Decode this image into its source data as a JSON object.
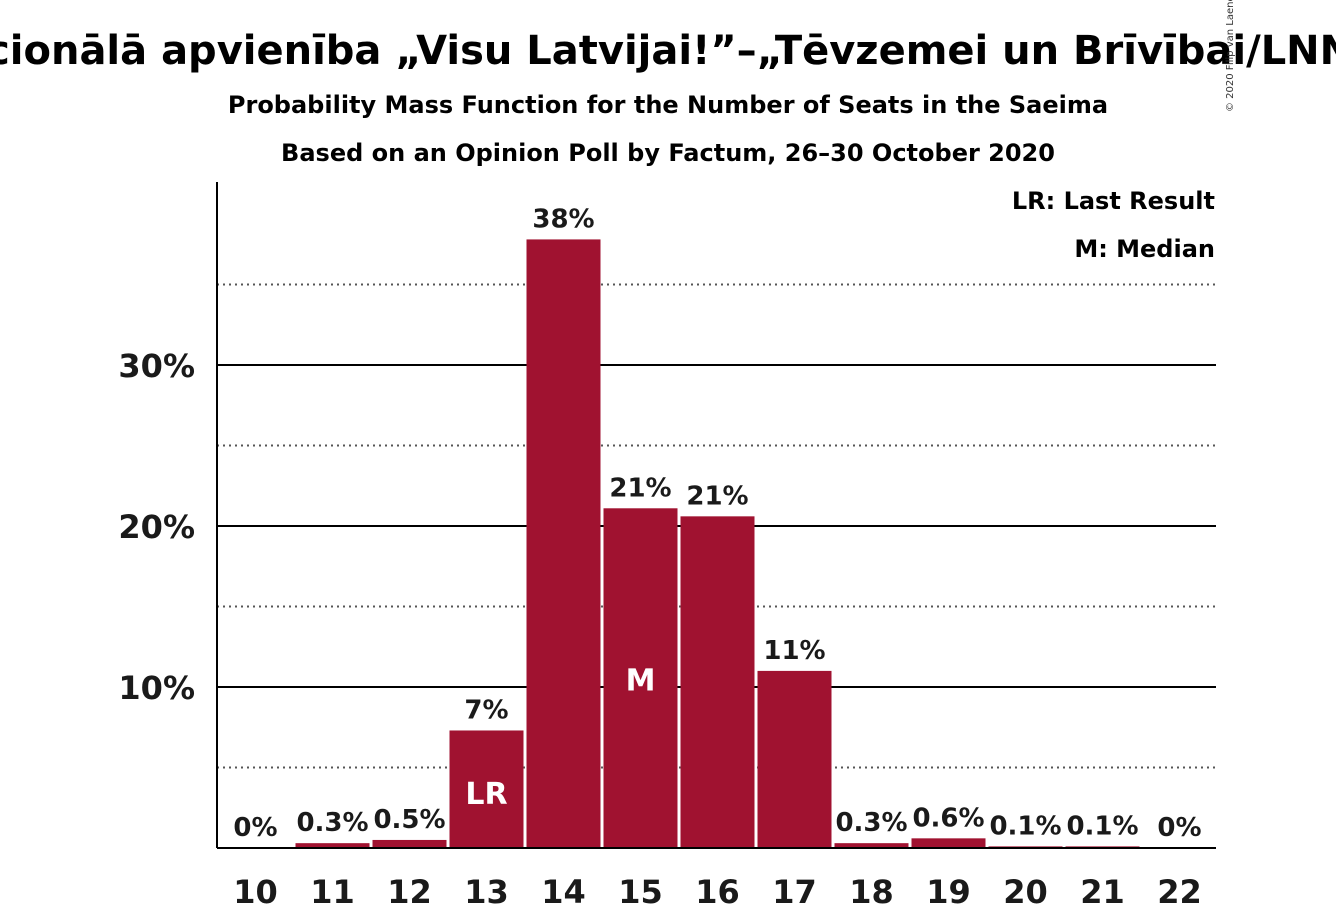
{
  "colors": {
    "bar": "#A01230",
    "axis": "#000000",
    "grid_dotted": "#555555",
    "text": "#1a1a1a"
  },
  "chart_data": {
    "type": "bar",
    "title": "Nacionālā apvienība „Visu Latvijai!”–„Tēvzemei un Brīvībai/LNNK”",
    "subtitle": "Probability Mass Function for the Number of Seats in the Saeima",
    "subtitle2": "Based on an Opinion Poll by Factum, 26–30 October 2020",
    "copyright": "© 2020 Filip van Laenen",
    "categories": [
      "10",
      "11",
      "12",
      "13",
      "14",
      "15",
      "16",
      "17",
      "18",
      "19",
      "20",
      "21",
      "22"
    ],
    "values": [
      0,
      0.3,
      0.5,
      7.3,
      37.8,
      21.1,
      20.6,
      11.0,
      0.3,
      0.6,
      0.1,
      0.1,
      0
    ],
    "value_labels": [
      "0%",
      "0.3%",
      "0.5%",
      "7%",
      "38%",
      "21%",
      "21%",
      "11%",
      "0.3%",
      "0.6%",
      "0.1%",
      "0.1%",
      "0%"
    ],
    "y_ticks": [
      10,
      20,
      30
    ],
    "y_tick_labels": [
      "10%",
      "20%",
      "30%"
    ],
    "y_minor_ticks": [
      5,
      15,
      25,
      35
    ],
    "ylim": [
      0,
      41.5
    ],
    "annotations": [
      {
        "category": "13",
        "text": "LR"
      },
      {
        "category": "15",
        "text": "M"
      }
    ],
    "legend": {
      "position": "top-right",
      "items": [
        "LR: Last Result",
        "M: Median"
      ]
    },
    "xlabel": "",
    "ylabel": ""
  }
}
